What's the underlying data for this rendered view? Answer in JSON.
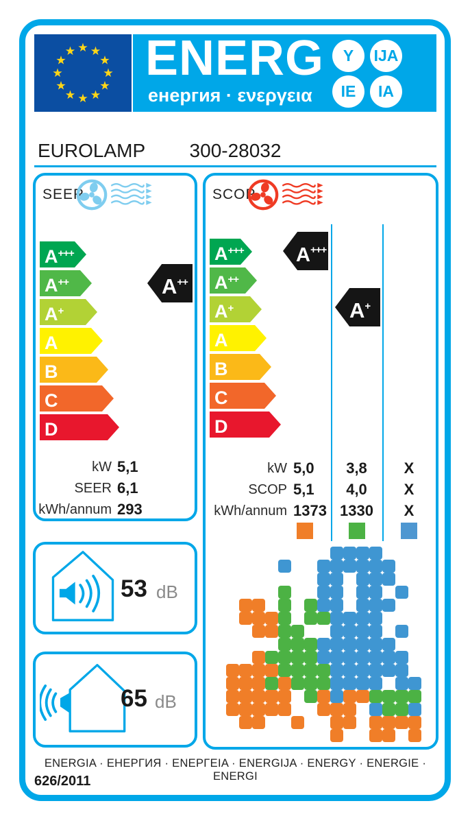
{
  "colors": {
    "accent": "#00A7E8",
    "eublue": "#0B4EA2",
    "staryellow": "#FFD617",
    "ink": "#151515"
  },
  "header": {
    "energ": "ENERG",
    "subtitle": "енергия · ενεργεια",
    "bubbles": [
      "Y",
      "IJA",
      "IE",
      "IA"
    ],
    "brand": "EUROLAMP",
    "model": "300-28032"
  },
  "energy_classes": [
    {
      "label": "A",
      "sup": "+++",
      "color": "#00A651"
    },
    {
      "label": "A",
      "sup": "++",
      "color": "#50B848"
    },
    {
      "label": "A",
      "sup": "+",
      "color": "#B2D235"
    },
    {
      "label": "A",
      "sup": "",
      "color": "#FFF200"
    },
    {
      "label": "B",
      "sup": "",
      "color": "#FBB918"
    },
    {
      "label": "C",
      "sup": "",
      "color": "#F2672A"
    },
    {
      "label": "D",
      "sup": "",
      "color": "#E8172D"
    }
  ],
  "seer": {
    "title": "SEER",
    "fan_color": "#7FCDEF",
    "rating": {
      "label": "A",
      "sup": "++"
    },
    "rows": [
      {
        "label": "kW",
        "value": "5,1"
      },
      {
        "label": "SEER",
        "value": "6,1"
      },
      {
        "label": "kWh/annum",
        "value": "293"
      }
    ]
  },
  "scop": {
    "title": "SCOP",
    "fan_color": "#EF3B24",
    "rating_warmer": {
      "label": "A",
      "sup": "+++"
    },
    "rating_average": {
      "label": "A",
      "sup": "+"
    },
    "rows": [
      {
        "label": "kW",
        "values": [
          "5,0",
          "3,8",
          "X"
        ]
      },
      {
        "label": "SCOP",
        "values": [
          "5,1",
          "4,0",
          "X"
        ]
      },
      {
        "label": "kWh/annum",
        "values": [
          "1373",
          "1330",
          "X"
        ]
      }
    ],
    "zones": [
      {
        "name": "warmer",
        "color": "#F07E28"
      },
      {
        "name": "average",
        "color": "#4CB244"
      },
      {
        "name": "colder",
        "color": "#4E97D1"
      }
    ]
  },
  "noise": {
    "indoor": {
      "value": "53",
      "unit": "dB"
    },
    "outdoor": {
      "value": "65",
      "unit": "dB"
    }
  },
  "footer": {
    "languages": "ENERGIA · ЕНЕРГИЯ · ΕΝΕΡΓΕΙΑ · ENERGIJA · ENERGY · ENERGIE · ENERGI",
    "regulation": "626/2011"
  },
  "climate_map": {
    "palette": {
      "O": "#F07E28",
      "G": "#4CB244",
      "B": "#3F96D2"
    },
    "grid": [
      "........BBBB....",
      "....B..BBBBBB...",
      ".......BB.BBB...",
      "....G..BB.BB.B..",
      ".OO.G.GBB.BBB...",
      ".OOOG.GGBBBB....",
      "..OOGG..BBBB.B..",
      "....GGGBBBBBB...",
      "..OGGGGBBBBBBB..",
      "OOOOGGGGBBBBBB..",
      "OOOGOGGGBBBB.BB.",
      "OOOOO.GOBOOGGGG.",
      "OOOOO..OOO.BGGB.",
      ".OO..O..OO.OOOO.",
      "........O..OO.O."
    ]
  }
}
